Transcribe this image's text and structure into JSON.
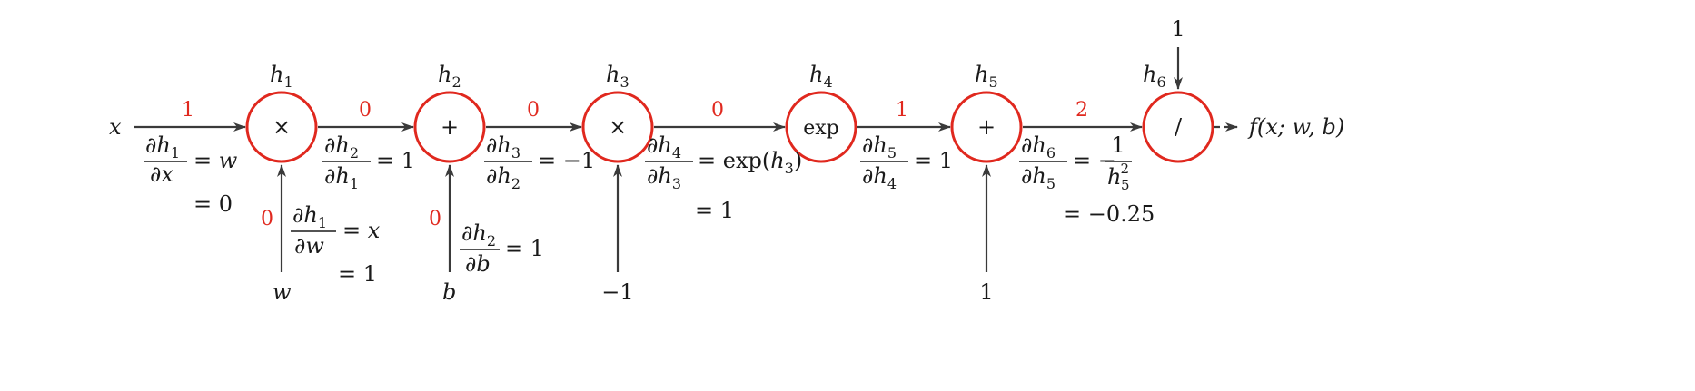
{
  "colors": {
    "node_stroke": "#e0281e",
    "grad_value": "#e0281e",
    "edge": "#3a3a3a",
    "text": "#1a1a1a"
  },
  "nodes": {
    "h1": {
      "label": "h",
      "sub": "1",
      "op": "×"
    },
    "h2": {
      "label": "h",
      "sub": "2",
      "op": "+"
    },
    "h3": {
      "label": "h",
      "sub": "3",
      "op": "×"
    },
    "h4": {
      "label": "h",
      "sub": "4",
      "op": "exp"
    },
    "h5": {
      "label": "h",
      "sub": "5",
      "op": "+"
    },
    "h6": {
      "label": "h",
      "sub": "6",
      "op": "/"
    }
  },
  "inputs": {
    "x": "x",
    "w": "w",
    "b": "b",
    "neg1": "−1",
    "one_h5": "1",
    "one_h6": "1"
  },
  "output": "f(x; w, b)",
  "grad_values": {
    "x_to_h1": "1",
    "h1_to_h2": "0",
    "h2_to_h3": "0",
    "h3_to_h4": "0",
    "h4_to_h5": "1",
    "h5_to_h6": "2",
    "w_to_h1": "0",
    "b_to_h2": "0"
  },
  "partials": {
    "dh1_dx": {
      "num_d": "∂",
      "num_v": "h",
      "num_s": "1",
      "den": "∂x",
      "rhs": "= w",
      "line2": "= 0"
    },
    "dh1_dw": {
      "num_d": "∂",
      "num_v": "h",
      "num_s": "1",
      "den": "∂w",
      "rhs": "= x",
      "line2": "= 1"
    },
    "dh2_dh1": {
      "num_d": "∂",
      "num_v": "h",
      "num_s": "2",
      "den_d": "∂",
      "den_v": "h",
      "den_s": "1",
      "rhs": "= 1"
    },
    "dh2_db": {
      "num_d": "∂",
      "num_v": "h",
      "num_s": "2",
      "den": "∂b",
      "rhs": "= 1"
    },
    "dh3_dh2": {
      "num_d": "∂",
      "num_v": "h",
      "num_s": "3",
      "den_d": "∂",
      "den_v": "h",
      "den_s": "2",
      "rhs": "= −1"
    },
    "dh4_dh3": {
      "num_d": "∂",
      "num_v": "h",
      "num_s": "4",
      "den_d": "∂",
      "den_v": "h",
      "den_s": "3",
      "rhs_a": "= exp(",
      "rhs_v": "h",
      "rhs_s": "3",
      "rhs_b": ")",
      "line2": "= 1"
    },
    "dh5_dh4": {
      "num_d": "∂",
      "num_v": "h",
      "num_s": "5",
      "den_d": "∂",
      "den_v": "h",
      "den_s": "4",
      "rhs": "= 1"
    },
    "dh6_dh5": {
      "num_d": "∂",
      "num_v": "h",
      "num_s": "6",
      "den_d": "∂",
      "den_v": "h",
      "den_s": "5",
      "rhs_eq": "= −",
      "rhs_num": "1",
      "rhs_den_v": "h",
      "rhs_den_sub": "5",
      "rhs_den_sup": "2",
      "line2": "= −0.25"
    }
  }
}
